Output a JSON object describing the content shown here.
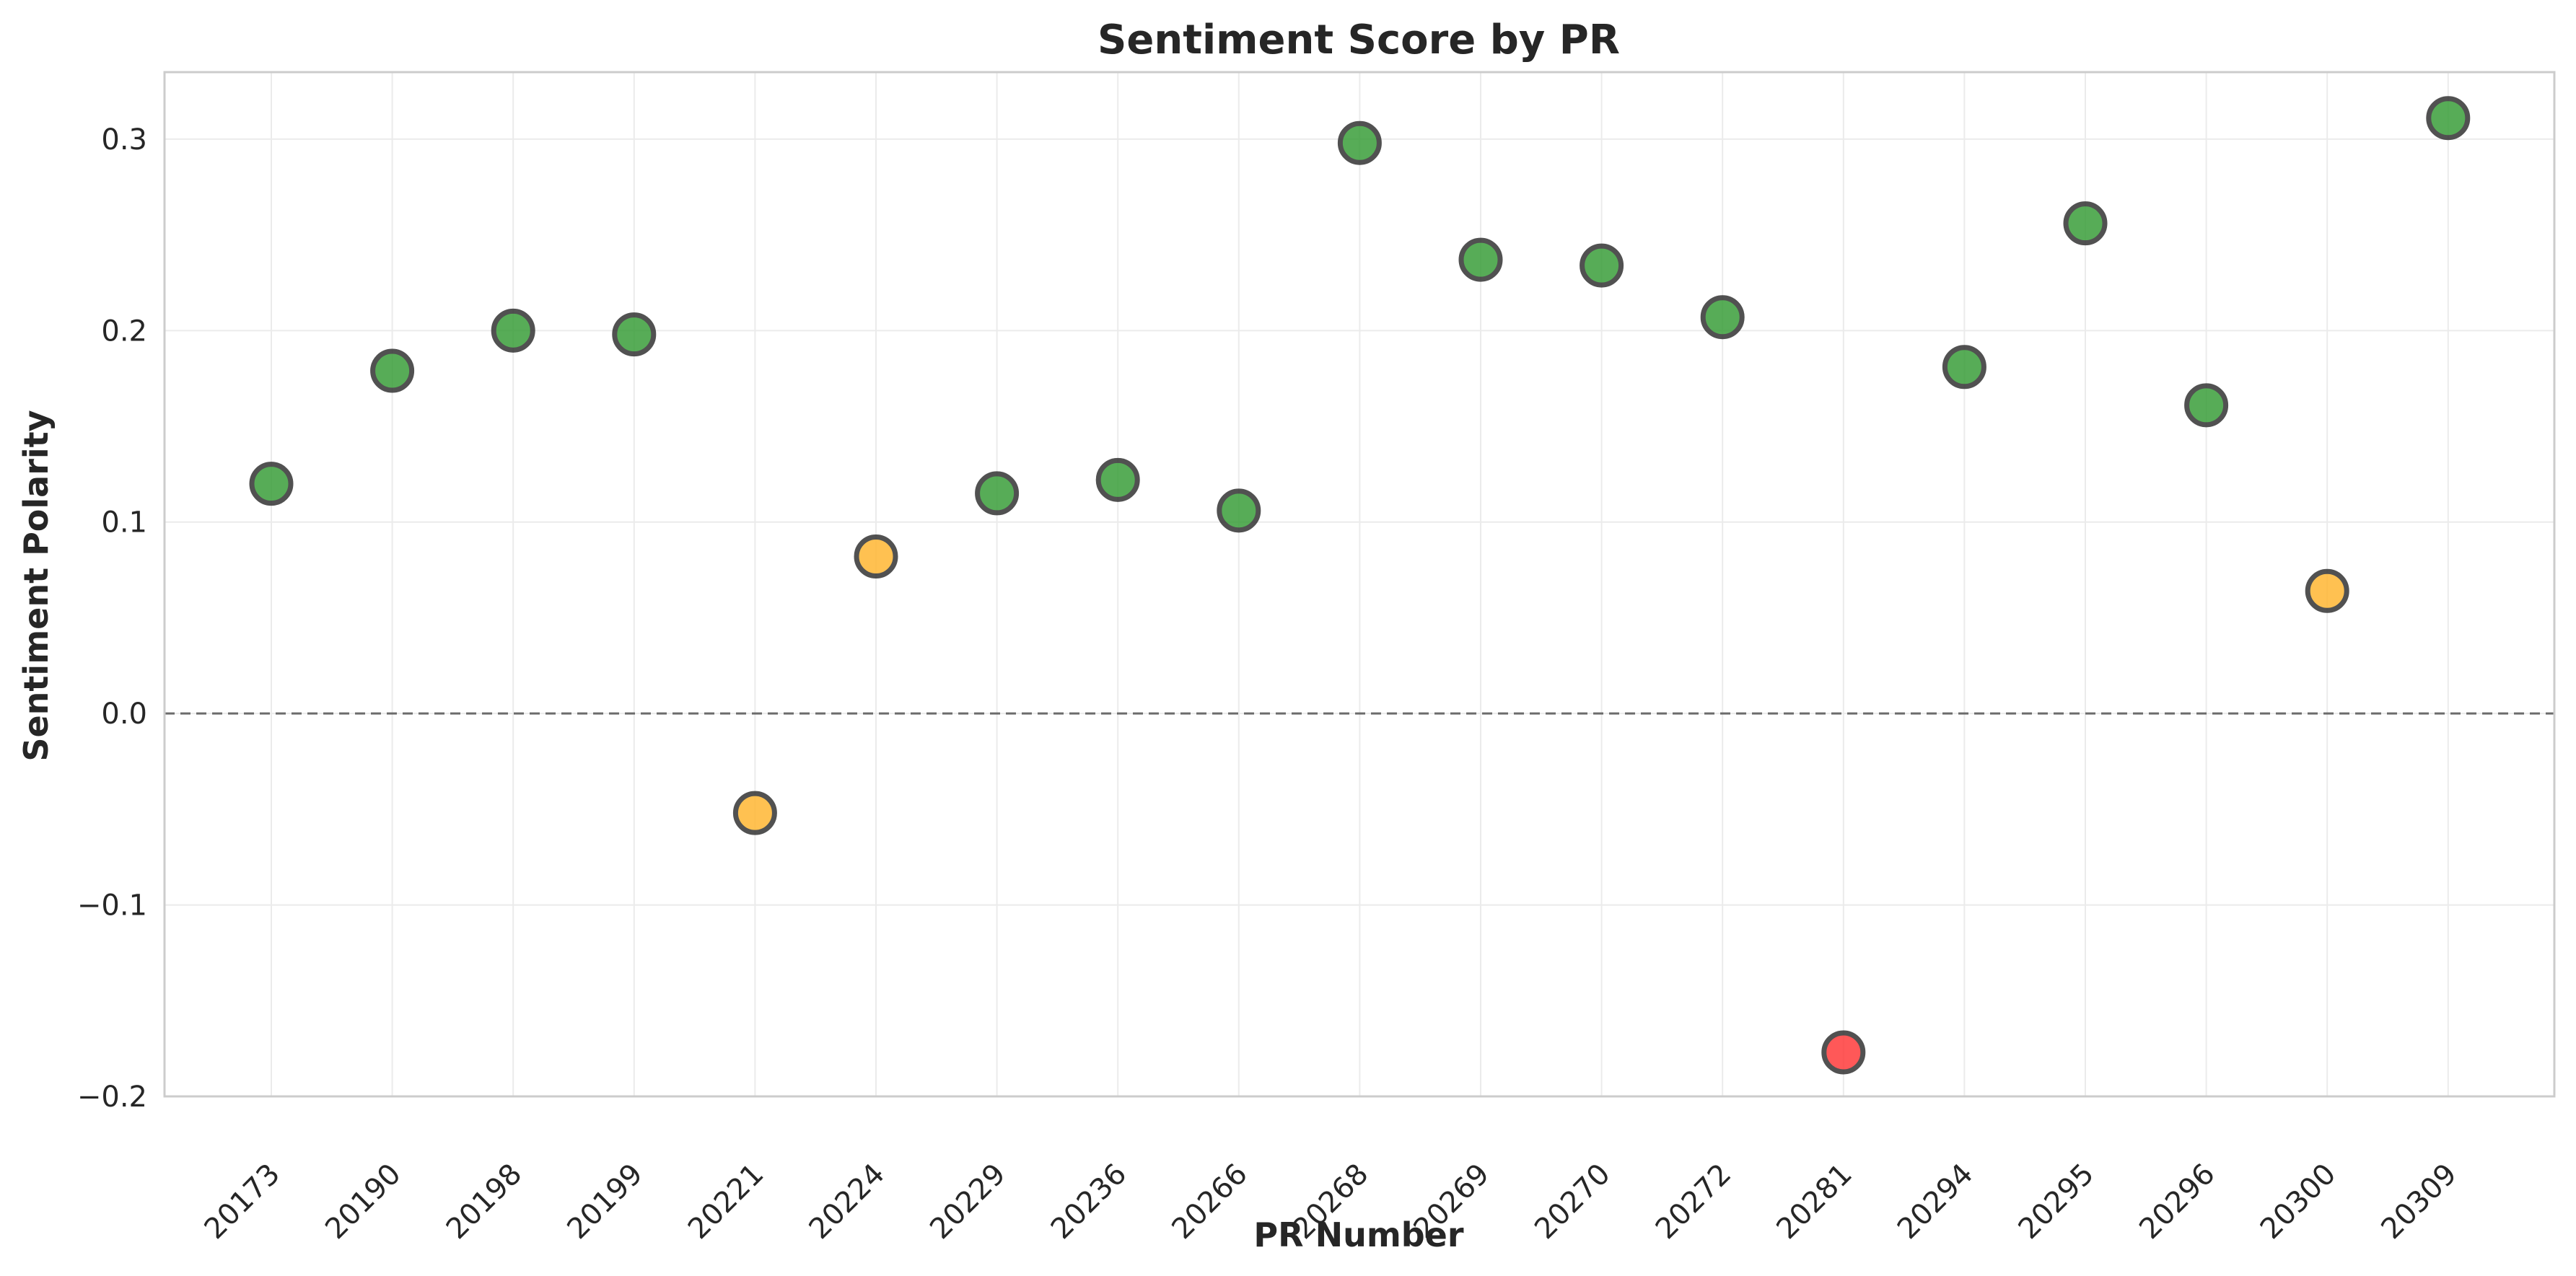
{
  "chart_data": {
    "type": "scatter",
    "title": "Sentiment Score by PR",
    "xlabel": "PR Number",
    "ylabel": "Sentiment Polarity",
    "ylim": [
      -0.2,
      0.335
    ],
    "yticks": [
      -0.2,
      -0.1,
      0.0,
      0.1,
      0.2,
      0.3
    ],
    "ytick_labels": [
      "−0.2",
      "−0.1",
      "0.0",
      "0.1",
      "0.2",
      "0.3"
    ],
    "grid": true,
    "reference_line": {
      "y": 0.0,
      "style": "dashed",
      "color": "#555555"
    },
    "categories": [
      "20173",
      "20190",
      "20198",
      "20199",
      "20221",
      "20224",
      "20229",
      "20236",
      "20266",
      "20268",
      "20269",
      "20270",
      "20272",
      "20281",
      "20294",
      "20295",
      "20296",
      "20300",
      "20309"
    ],
    "values": [
      0.12,
      0.179,
      0.2,
      0.198,
      -0.052,
      0.082,
      0.115,
      0.122,
      0.106,
      0.298,
      0.237,
      0.234,
      0.207,
      -0.177,
      0.181,
      0.256,
      0.161,
      0.064,
      0.311
    ],
    "point_colors": [
      "#3a9e3a",
      "#3a9e3a",
      "#3a9e3a",
      "#3a9e3a",
      "#ffb733",
      "#ffb733",
      "#3a9e3a",
      "#3a9e3a",
      "#3a9e3a",
      "#3a9e3a",
      "#3a9e3a",
      "#3a9e3a",
      "#3a9e3a",
      "#ff3b3b",
      "#3a9e3a",
      "#3a9e3a",
      "#3a9e3a",
      "#ffb733",
      "#3a9e3a"
    ]
  }
}
